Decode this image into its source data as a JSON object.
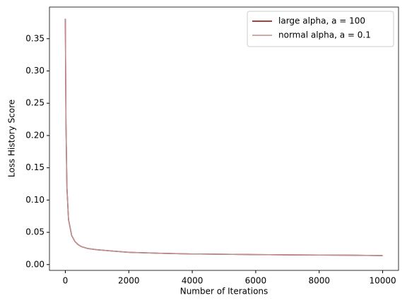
{
  "chart_data": {
    "type": "line",
    "xlabel": "Number of Iterations",
    "ylabel": "Loss History Score",
    "x": [
      0,
      10,
      20,
      50,
      100,
      200,
      300,
      400,
      500,
      700,
      1000,
      1500,
      2000,
      3000,
      4000,
      5000,
      6000,
      7000,
      8000,
      9000,
      10000
    ],
    "series": [
      {
        "name": "large alpha, a = 100",
        "color": "#8b0000",
        "values": [
          0.381,
          0.3,
          0.22,
          0.12,
          0.07,
          0.045,
          0.036,
          0.031,
          0.028,
          0.025,
          0.023,
          0.021,
          0.019,
          0.0175,
          0.0165,
          0.016,
          0.0155,
          0.015,
          0.0148,
          0.0145,
          0.014
        ]
      },
      {
        "name": "normal alpha, a = 0.1",
        "color": "#bc8f8f",
        "values": [
          0.381,
          0.3,
          0.22,
          0.12,
          0.07,
          0.045,
          0.036,
          0.031,
          0.028,
          0.025,
          0.023,
          0.021,
          0.019,
          0.0175,
          0.0165,
          0.016,
          0.0155,
          0.015,
          0.0148,
          0.0145,
          0.014
        ]
      }
    ],
    "xlim": [
      -500,
      10500
    ],
    "xticks": [
      0,
      2000,
      4000,
      6000,
      8000,
      10000
    ],
    "ylim": [
      -0.009,
      0.399
    ],
    "yticks": [
      {
        "value": 0,
        "label": "0.00"
      },
      {
        "value": 0.05,
        "label": "0.05"
      },
      {
        "value": 0.1,
        "label": "0.10"
      },
      {
        "value": 0.15,
        "label": "0.15"
      },
      {
        "value": 0.2,
        "label": "0.20"
      },
      {
        "value": 0.25,
        "label": "0.25"
      },
      {
        "value": 0.3,
        "label": "0.30"
      },
      {
        "value": 0.35,
        "label": "0.35"
      }
    ],
    "legend": "upper right",
    "grid": false
  }
}
